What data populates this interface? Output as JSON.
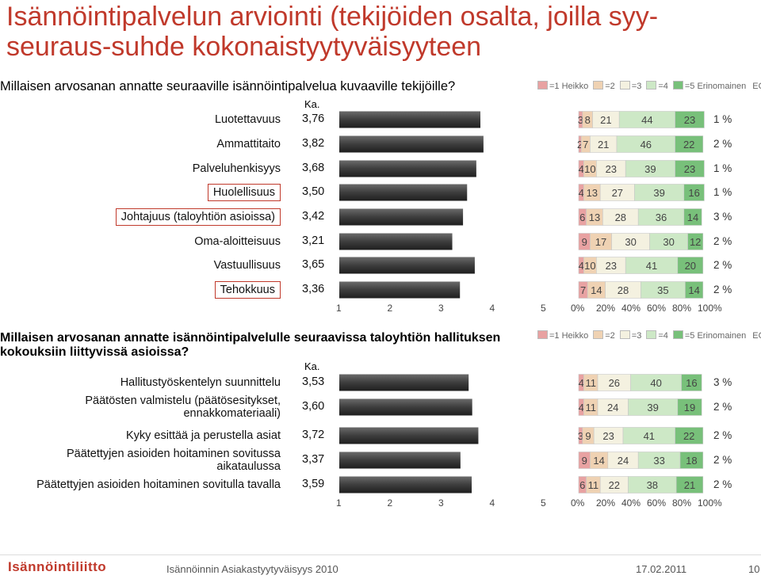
{
  "title": "Isännöintipalvelun arviointi (tekijöiden osalta, joilla syy-seuraus-suhde kokonaistyytyväisyyteen",
  "legend": [
    "=1 Heikko",
    "=2",
    "=3",
    "=4",
    "=5 Erinomainen",
    "EOS%"
  ],
  "legend_colors": [
    "#e8a2a2",
    "#efd2b3",
    "#f4f1e0",
    "#cde8c6",
    "#78c07a"
  ],
  "ka_label": "Ka.",
  "mean_axis_ticks": [
    "1",
    "2",
    "3",
    "4",
    "5"
  ],
  "pct_axis_ticks": [
    "0%",
    "20%",
    "40%",
    "60%",
    "80%",
    "100%"
  ],
  "footer": {
    "logo": "Isännöintiliitto",
    "center": "Isännöinnin Asiakastyytyväisyys 2010",
    "date": "17.02.2011",
    "page": "10"
  },
  "chart_data": [
    {
      "type": "bar",
      "question": "Millaisen arvosanan annatte seuraaville isännöintipalvelua kuvaaville tekijöille?",
      "categories": [
        "Luotettavuus",
        "Ammattitaito",
        "Palveluhenkisyys",
        "Huolellisuus",
        "Johtajuus (taloyhtiön asioissa)",
        "Oma-aloitteisuus",
        "Vastuullisuus",
        "Tehokkuus"
      ],
      "boxed": [
        false,
        false,
        false,
        true,
        true,
        false,
        false,
        true
      ],
      "means": [
        3.76,
        3.82,
        3.68,
        3.5,
        3.42,
        3.21,
        3.65,
        3.36
      ],
      "means_text": [
        "3,76",
        "3,82",
        "3,68",
        "3,50",
        "3,42",
        "3,21",
        "3,65",
        "3,36"
      ],
      "distribution": [
        [
          3,
          8,
          21,
          44,
          23
        ],
        [
          2,
          7,
          21,
          46,
          22
        ],
        [
          4,
          10,
          23,
          39,
          23
        ],
        [
          4,
          13,
          27,
          39,
          16
        ],
        [
          6,
          13,
          28,
          36,
          14
        ],
        [
          9,
          17,
          30,
          30,
          12
        ],
        [
          4,
          10,
          23,
          41,
          20
        ],
        [
          7,
          14,
          28,
          35,
          14
        ]
      ],
      "eos": [
        "1 %",
        "2 %",
        "1 %",
        "1 %",
        "3 %",
        "2 %",
        "2 %",
        "2 %"
      ],
      "xlim": [
        1,
        5
      ]
    },
    {
      "type": "bar",
      "question": "Millaisen arvosanan annatte isännöintipalvelulle seuraavissa taloyhtiön hallituksen kokouksiin liittyvissä asioissa?",
      "categories": [
        "Hallitustyöskentelyn suunnittelu",
        "Päätösten valmistelu (päätösesitykset, ennakkomateriaali)",
        "Kyky esittää ja perustella asiat",
        "Päätettyjen asioiden hoitaminen sovitussa aikataulussa",
        "Päätettyjen asioiden hoitaminen sovitulla tavalla"
      ],
      "category_lines": [
        [
          "Hallitustyöskentelyn suunnittelu"
        ],
        [
          "Päätösten valmistelu (päätösesitykset,",
          "ennakkomateriaali)"
        ],
        [
          "Kyky esittää ja perustella asiat"
        ],
        [
          "Päätettyjen asioiden hoitaminen sovitussa",
          "aikataulussa"
        ],
        [
          "Päätettyjen asioiden hoitaminen sovitulla tavalla"
        ]
      ],
      "means": [
        3.53,
        3.6,
        3.72,
        3.37,
        3.59
      ],
      "means_text": [
        "3,53",
        "3,60",
        "3,72",
        "3,37",
        "3,59"
      ],
      "distribution": [
        [
          4,
          11,
          26,
          40,
          16
        ],
        [
          4,
          11,
          24,
          39,
          19
        ],
        [
          3,
          9,
          23,
          41,
          22
        ],
        [
          9,
          14,
          24,
          33,
          18
        ],
        [
          6,
          11,
          22,
          38,
          21
        ]
      ],
      "eos": [
        "3 %",
        "2 %",
        "2 %",
        "2 %",
        "2 %"
      ],
      "xlim": [
        1,
        5
      ]
    }
  ]
}
